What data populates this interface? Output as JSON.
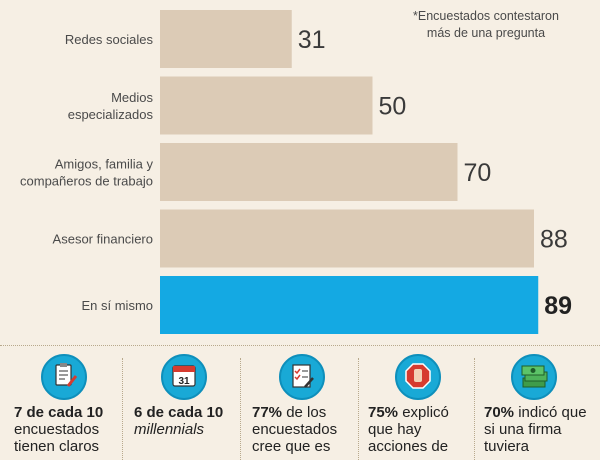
{
  "note": [
    "*Encuestados contestaron",
    "más de una pregunta"
  ],
  "chart_data": {
    "type": "bar",
    "orientation": "horizontal",
    "categories": [
      [
        "Redes sociales"
      ],
      [
        "Medios",
        "especializados"
      ],
      [
        "Amigos, familia y",
        "compañeros de trabajo"
      ],
      [
        "Asesor financiero"
      ],
      [
        "En sí mismo"
      ]
    ],
    "values": [
      31,
      50,
      70,
      88,
      89
    ],
    "highlight_index": 4,
    "colors": {
      "bar": "#dccbb6",
      "highlight": "#14a9e3"
    },
    "xlim": [
      0,
      100
    ]
  },
  "stats": [
    {
      "icon": "clipboard-pen-icon",
      "bold": "7 de cada 10",
      "rest": " encuestados tienen claros",
      "italic": ""
    },
    {
      "icon": "calendar-icon",
      "bold": "6 de cada 10",
      "rest": "",
      "italic": "millennials",
      "icon_text": "31"
    },
    {
      "icon": "checklist-icon",
      "bold": "77%",
      "rest": " de los encuestados cree que es",
      "italic": ""
    },
    {
      "icon": "stop-hand-icon",
      "bold": "75%",
      "rest": " explicó que hay acciones de",
      "italic": ""
    },
    {
      "icon": "money-stack-icon",
      "bold": "70%",
      "rest": " indicó que si una firma tuviera",
      "italic": ""
    }
  ]
}
